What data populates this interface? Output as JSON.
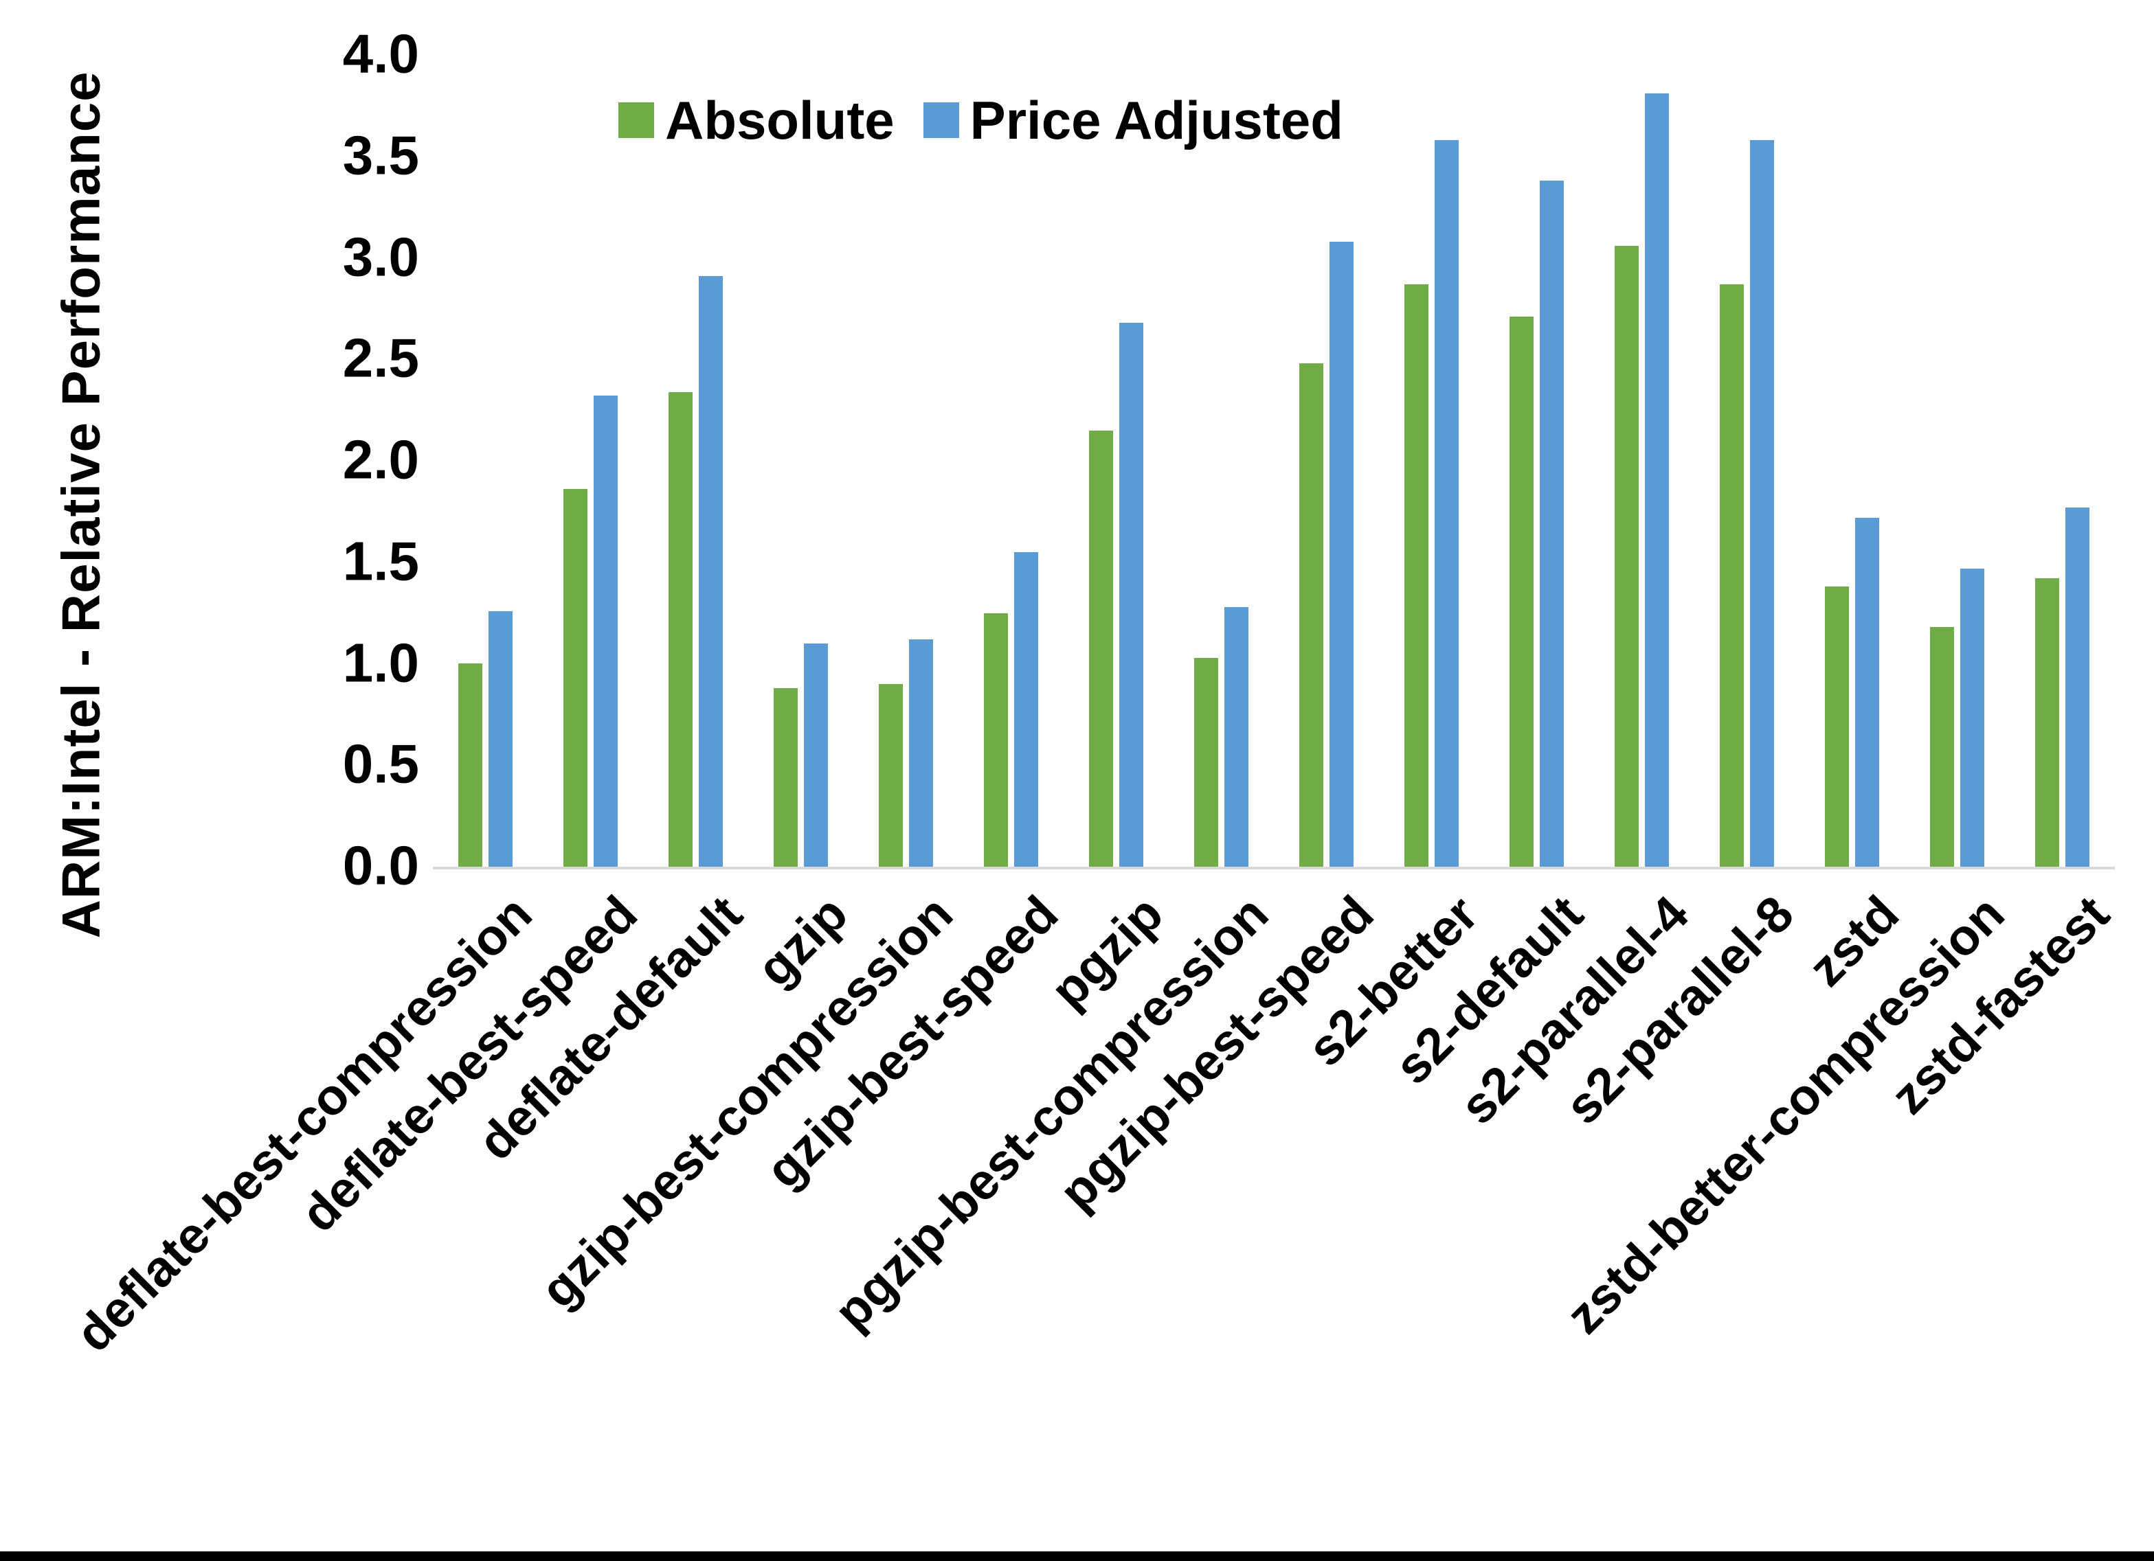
{
  "y_axis_title": "ARM:Intel - Relative Performance",
  "legend": {
    "items": [
      {
        "label": "Absolute",
        "color": "#70AD47"
      },
      {
        "label": "Price Adjusted",
        "color": "#5B9BD5"
      }
    ],
    "position": "top-center"
  },
  "axis_line_color": "#d9d9d9",
  "chart_data": {
    "type": "bar",
    "title": "",
    "xlabel": "",
    "ylabel": "ARM:Intel - Relative Performance",
    "ylim": [
      0.0,
      4.0
    ],
    "ytick_step": 0.5,
    "ytick_labels": [
      "4.0",
      "3.5",
      "3.0",
      "2.5",
      "2.0",
      "1.5",
      "1.0",
      "0.5",
      "0.0"
    ],
    "ytick_values": [
      4.0,
      3.5,
      3.0,
      2.5,
      2.0,
      1.5,
      1.0,
      0.5,
      0.0
    ],
    "grid": false,
    "legend_position": "top-center",
    "categories": [
      "deflate-best-compression",
      "deflate-best-speed",
      "deflate-default",
      "gzip",
      "gzip-best-compression",
      "gzip-best-speed",
      "pgzip",
      "pgzip-best-compression",
      "pgzip-best-speed",
      "s2-better",
      "s2-default",
      "s2-parallel-4",
      "s2-parallel-8",
      "zstd",
      "zstd-better-compression",
      "zstd-fastest"
    ],
    "series": [
      {
        "name": "Absolute",
        "color": "#70AD47",
        "values": [
          1.0,
          1.86,
          2.34,
          0.88,
          0.9,
          1.25,
          2.15,
          1.03,
          2.48,
          2.87,
          2.71,
          3.06,
          2.87,
          1.38,
          1.18,
          1.42
        ]
      },
      {
        "name": "Price Adjusted",
        "color": "#5B9BD5",
        "values": [
          1.26,
          2.32,
          2.91,
          1.1,
          1.12,
          1.55,
          2.68,
          1.28,
          3.08,
          3.58,
          3.38,
          3.81,
          3.58,
          1.72,
          1.47,
          1.77
        ]
      }
    ]
  }
}
